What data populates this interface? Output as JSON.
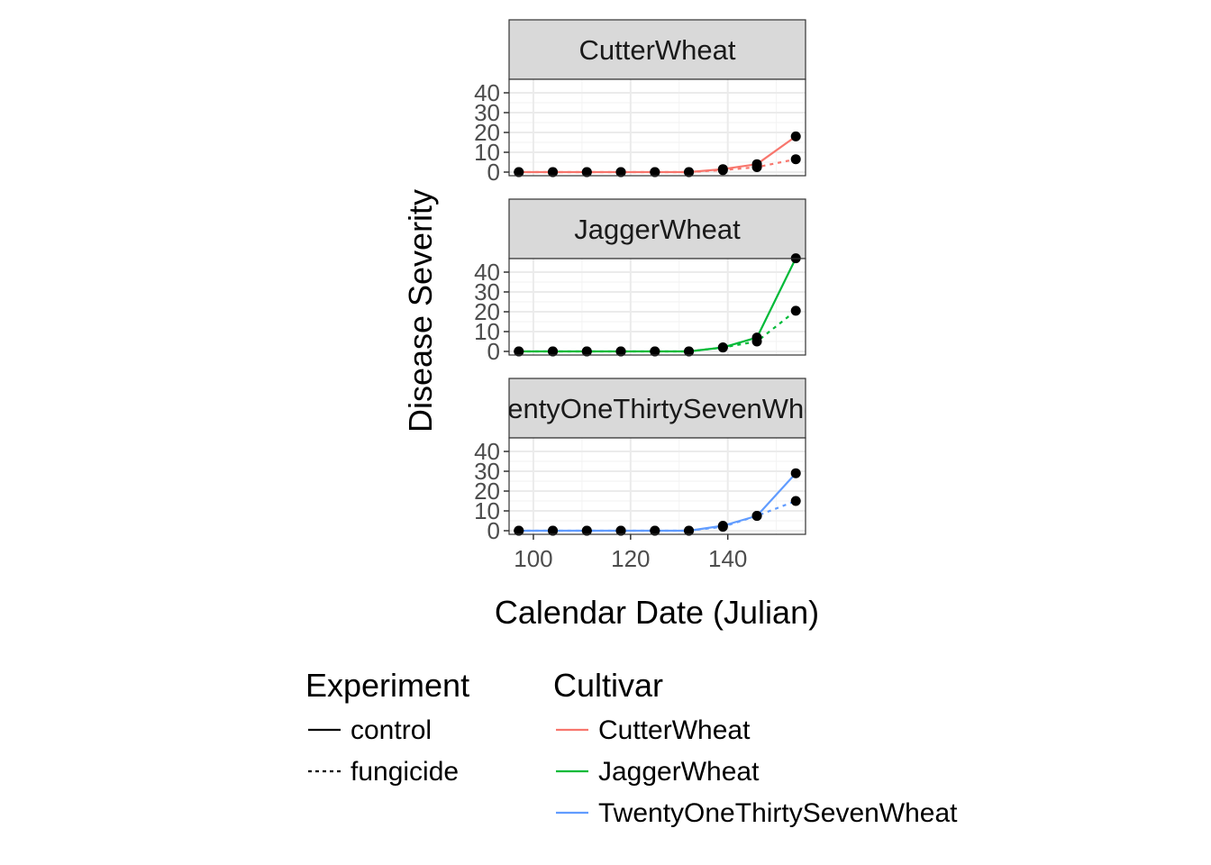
{
  "chart_data": {
    "type": "line",
    "facet_by": "Cultivar",
    "xlabel": "Calendar Date (Julian)",
    "ylabel": "Disease Severity",
    "xlim": [
      95,
      156
    ],
    "ylim": [
      0,
      45
    ],
    "x_ticks": [
      100,
      120,
      140
    ],
    "y_ticks": [
      0,
      10,
      20,
      30,
      40
    ],
    "grid": true,
    "legend_position": "bottom",
    "x": [
      97,
      104,
      111,
      118,
      125,
      132,
      139,
      146,
      154
    ],
    "panels": [
      {
        "strip_label": "CutterWheat",
        "color": "#F8766D",
        "series": [
          {
            "experiment": "control",
            "values": [
              0,
              0,
              0,
              0,
              0,
              0,
              1.5,
              4,
              18
            ]
          },
          {
            "experiment": "fungicide",
            "values": [
              0,
              0,
              0,
              0,
              0,
              0,
              1,
              2.5,
              6.5
            ]
          }
        ]
      },
      {
        "strip_label": "JaggerWheat",
        "color": "#00BA38",
        "series": [
          {
            "experiment": "control",
            "values": [
              0,
              0,
              0,
              0,
              0,
              0,
              2,
              7,
              47
            ]
          },
          {
            "experiment": "fungicide",
            "values": [
              0,
              0,
              0,
              0,
              0,
              0,
              2,
              5,
              20.5
            ]
          }
        ]
      },
      {
        "strip_label": "TwentyOneThirtySevenWheat",
        "color": "#619CFF",
        "series": [
          {
            "experiment": "control",
            "values": [
              0,
              0,
              0,
              0,
              0,
              0,
              2.5,
              7.5,
              29
            ]
          },
          {
            "experiment": "fungicide",
            "values": [
              0,
              0,
              0,
              0,
              0,
              0,
              2,
              7.5,
              15
            ]
          }
        ]
      }
    ],
    "legends": [
      {
        "title": "Experiment",
        "entries": [
          {
            "label": "control",
            "line": "solid",
            "color": "#000000"
          },
          {
            "label": "fungicide",
            "line": "dotted",
            "color": "#000000"
          }
        ]
      },
      {
        "title": "Cultivar",
        "entries": [
          {
            "label": "CutterWheat",
            "line": "solid",
            "color": "#F8766D"
          },
          {
            "label": "JaggerWheat",
            "line": "solid",
            "color": "#00BA38"
          },
          {
            "label": "TwentyOneThirtySevenWheat",
            "line": "solid",
            "color": "#619CFF"
          }
        ]
      }
    ]
  }
}
